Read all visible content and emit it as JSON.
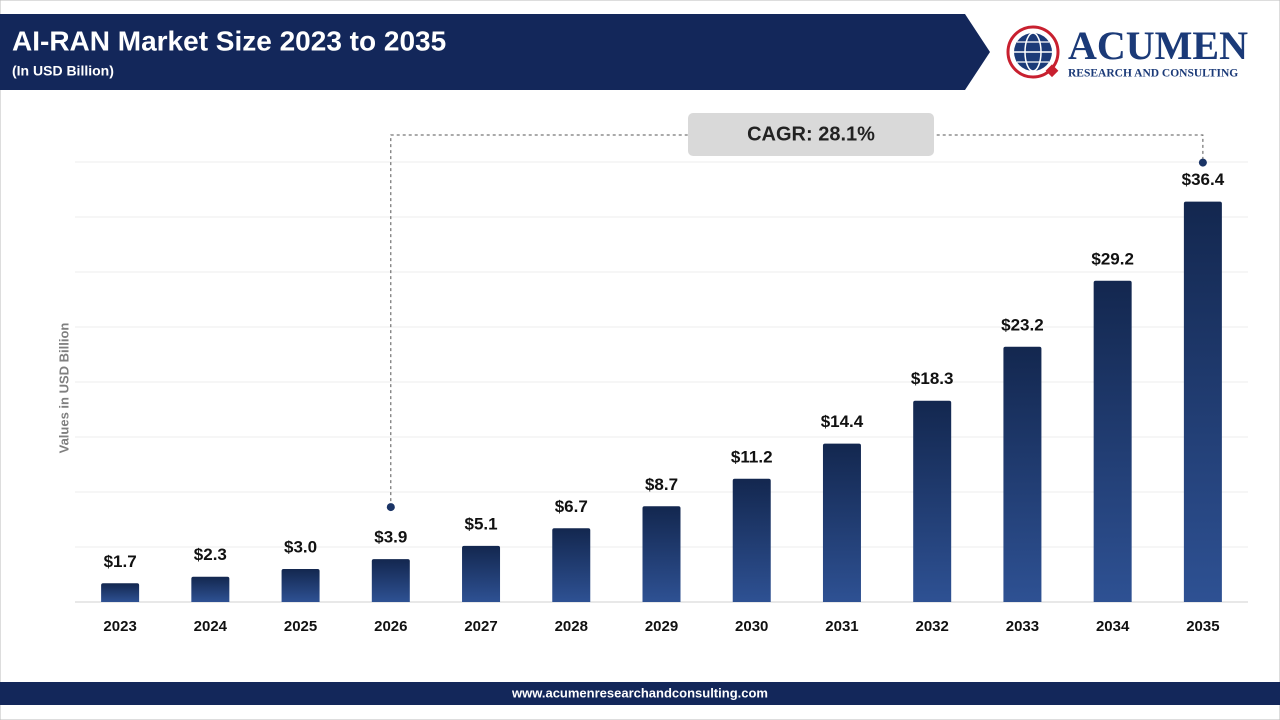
{
  "chart_data": {
    "type": "bar",
    "title": "AI-RAN Market Size 2023 to 2035",
    "subtitle": "(In USD Billion)",
    "y_label": "Values in USD Billion",
    "annotation": "CAGR: 28.1%",
    "categories": [
      "2023",
      "2024",
      "2025",
      "2026",
      "2027",
      "2028",
      "2029",
      "2030",
      "2031",
      "2032",
      "2033",
      "2034",
      "2035"
    ],
    "values": [
      1.7,
      2.3,
      3.0,
      3.9,
      5.1,
      6.7,
      8.7,
      11.2,
      14.4,
      18.3,
      23.2,
      29.2,
      36.4
    ],
    "value_labels": [
      "$1.7",
      "$2.3",
      "$3.0",
      "$3.9",
      "$5.1",
      "$6.7",
      "$8.7",
      "$11.2",
      "$14.4",
      "$18.3",
      "$23.2",
      "$29.2",
      "$36.4"
    ],
    "color": "#1b3466",
    "ylim": [
      0,
      40
    ],
    "yticks": [
      0,
      5,
      10,
      15,
      20,
      25,
      30,
      35,
      40
    ],
    "grid": true
  },
  "logo": {
    "name": "ACUMEN",
    "tagline": "RESEARCH AND CONSULTING"
  },
  "footer": "www.acumenresearchandconsulting.com"
}
